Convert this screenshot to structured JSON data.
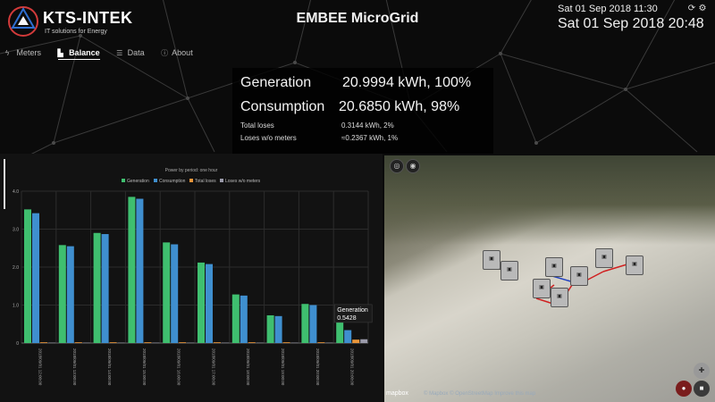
{
  "header": {
    "brand": "KTS-INTEK",
    "tagline": "IT solutions for Energy",
    "title": "EMBEE MicroGrid",
    "clock_small": "Sat 01 Sep 2018 11:30",
    "clock_big": "Sat 01 Sep 2018 20:48",
    "refresh_icon": "refresh-icon",
    "settings_icon": "gear-icon"
  },
  "nav": {
    "items": [
      {
        "label": "Meters",
        "icon": "lightning-icon",
        "active": false
      },
      {
        "label": "Balance",
        "icon": "bar-chart-icon",
        "active": true
      },
      {
        "label": "Data",
        "icon": "database-icon",
        "active": false
      },
      {
        "label": "About",
        "icon": "info-icon",
        "active": false
      }
    ]
  },
  "summary": {
    "generation_label": "Generation",
    "generation_value": "20.9994 kWh, 100%",
    "consumption_label": "Consumption",
    "consumption_value": "20.6850 kWh, 98%",
    "total_loses_label": "Total loses",
    "total_loses_value": "0.3144 kWh, 2%",
    "loses_wo_label": "Loses w/o meters",
    "loses_wo_value": "≈0.2367 kWh, 1%"
  },
  "chart_data": {
    "type": "bar",
    "title": "Power by period: one hour",
    "categories": [
      "2018/09/01 12:00:00",
      "2018/09/01 13:00:00",
      "2018/09/01 14:00:00",
      "2018/09/01 15:00:00",
      "2018/09/01 16:00:00",
      "2018/09/01 17:00:00",
      "2018/09/01 18:00:00",
      "2018/09/01 19:00:00",
      "2018/09/01 20:00:00",
      "2018/09/01 20:00:00"
    ],
    "ylim": [
      0,
      4.0
    ],
    "yticks": [
      "0",
      "1.0",
      "2.0",
      "3.0",
      "4.0"
    ],
    "legend_position": "top",
    "series": [
      {
        "name": "Generation",
        "color": "#3fbf6f",
        "values": [
          3.52,
          2.58,
          2.9,
          3.85,
          2.65,
          2.12,
          1.28,
          0.73,
          1.03,
          0.5428
        ]
      },
      {
        "name": "Consumption",
        "color": "#3f8fcf",
        "values": [
          3.42,
          2.55,
          2.87,
          3.8,
          2.6,
          2.08,
          1.25,
          0.71,
          1.0,
          0.34
        ]
      },
      {
        "name": "Total loses",
        "color": "#e8953a",
        "values": [
          0.02,
          0.02,
          0.02,
          0.02,
          0.02,
          0.02,
          0.02,
          0.02,
          0.02,
          0.09
        ]
      },
      {
        "name": "Loses w/o meters",
        "color": "#9a9aaa",
        "values": [
          0.01,
          0.01,
          0.01,
          0.01,
          0.01,
          0.01,
          0.01,
          0.01,
          0.01,
          0.1
        ]
      }
    ],
    "tooltip": {
      "series": "Generation",
      "value": "0.5428"
    }
  },
  "map": {
    "logo": "mapbox",
    "attribution": "© Mapbox © OpenStreetMap Improve this map"
  },
  "colors": {
    "generation": "#3fbf6f",
    "consumption": "#3f8fcf",
    "total_loses": "#e8953a",
    "loses_wo_meters": "#9a9aaa",
    "line_red": "#d02020",
    "line_blue": "#2040c0"
  }
}
